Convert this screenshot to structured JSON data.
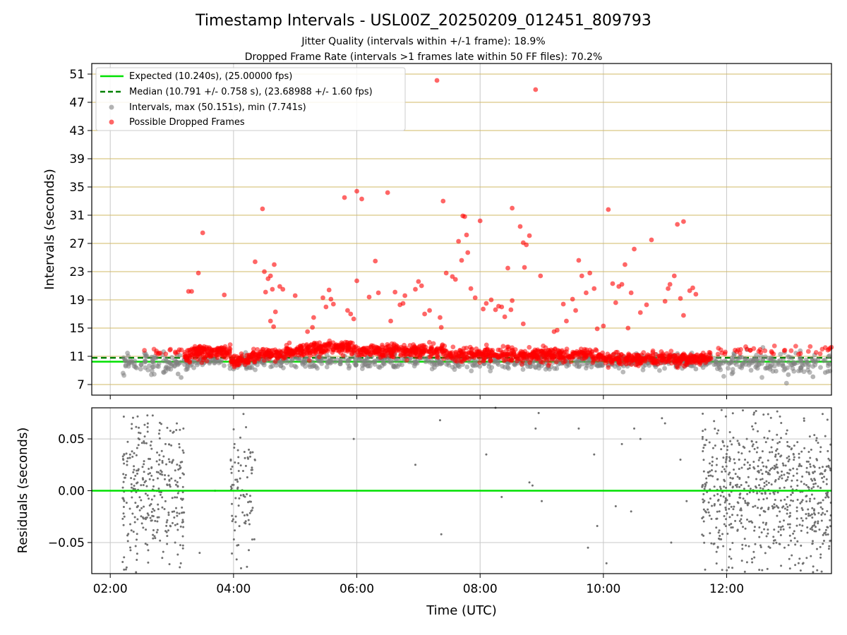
{
  "figure": {
    "title": "Timestamp Intervals - USL00Z_20250209_012451_809793",
    "subtitle_lines": [
      "Jitter Quality (intervals within +/-1 frame): 18.9%",
      "Dropped Frame Rate (intervals >1 frames late within 50 FF files): 70.2%"
    ]
  },
  "colors": {
    "expected": "#00e000",
    "median": "#008000",
    "interval": "#808080",
    "dropped": "#ff0000",
    "hgrid_top": "#d2b866",
    "grid": "#c8c8c8"
  },
  "chart_data": [
    {
      "type": "scatter",
      "panel": "top",
      "xlabel": "",
      "ylabel": "Intervals (seconds)",
      "xlim_hours": [
        1.7,
        13.7
      ],
      "ylim": [
        5.5,
        52.5
      ],
      "yticks": [
        7,
        11,
        15,
        19,
        23,
        27,
        31,
        35,
        39,
        43,
        47,
        51
      ],
      "grid": "horizontal gold lines at yticks, vertical grey lines at xticks",
      "legend_position": "top-left",
      "legend": [
        "Expected (10.240s), (25.00000 fps)",
        "Median (10.791 +/- 0.758 s), (23.68988 +/- 1.60 fps)",
        "Intervals, max (50.151s), min (7.741s)",
        "Possible Dropped Frames"
      ],
      "expected_value": 10.24,
      "median_value": 10.791,
      "interval_max": 50.151,
      "interval_min": 7.741,
      "dropped_points": [
        [
          3.27,
          20.2
        ],
        [
          3.32,
          20.2
        ],
        [
          3.43,
          22.8
        ],
        [
          3.5,
          28.5
        ],
        [
          3.85,
          19.7
        ],
        [
          4.35,
          24.4
        ],
        [
          4.47,
          31.9
        ],
        [
          4.5,
          23.0
        ],
        [
          4.52,
          20.1
        ],
        [
          4.56,
          22.0
        ],
        [
          4.6,
          22.4
        ],
        [
          4.63,
          20.5
        ],
        [
          4.66,
          24.0
        ],
        [
          4.68,
          17.3
        ],
        [
          4.75,
          20.9
        ],
        [
          4.8,
          20.5
        ],
        [
          4.6,
          16.0
        ],
        [
          4.65,
          15.2
        ],
        [
          5.0,
          19.6
        ],
        [
          5.2,
          14.5
        ],
        [
          5.28,
          15.1
        ],
        [
          5.3,
          16.5
        ],
        [
          5.45,
          19.3
        ],
        [
          5.5,
          18.0
        ],
        [
          5.55,
          20.4
        ],
        [
          5.58,
          19.1
        ],
        [
          5.62,
          18.4
        ],
        [
          5.8,
          33.5
        ],
        [
          5.85,
          17.5
        ],
        [
          5.9,
          17.0
        ],
        [
          5.95,
          16.3
        ],
        [
          6.0,
          34.4
        ],
        [
          6.08,
          33.3
        ],
        [
          6.0,
          21.7
        ],
        [
          6.2,
          19.4
        ],
        [
          6.3,
          24.5
        ],
        [
          6.35,
          20.0
        ],
        [
          6.5,
          34.2
        ],
        [
          6.55,
          16.0
        ],
        [
          6.62,
          20.1
        ],
        [
          6.7,
          18.3
        ],
        [
          6.75,
          18.5
        ],
        [
          6.78,
          19.6
        ],
        [
          6.95,
          20.5
        ],
        [
          7.0,
          21.6
        ],
        [
          7.05,
          21.0
        ],
        [
          7.1,
          17.0
        ],
        [
          7.18,
          17.5
        ],
        [
          7.3,
          50.1
        ],
        [
          7.35,
          16.5
        ],
        [
          7.37,
          15.1
        ],
        [
          7.4,
          33.0
        ],
        [
          7.45,
          22.8
        ],
        [
          7.55,
          22.3
        ],
        [
          7.6,
          21.9
        ],
        [
          7.65,
          27.3
        ],
        [
          7.7,
          24.6
        ],
        [
          7.72,
          30.9
        ],
        [
          7.75,
          30.8
        ],
        [
          7.78,
          28.2
        ],
        [
          7.8,
          25.7
        ],
        [
          7.85,
          20.6
        ],
        [
          7.92,
          19.3
        ],
        [
          8.0,
          30.2
        ],
        [
          8.05,
          17.7
        ],
        [
          8.1,
          18.5
        ],
        [
          8.18,
          19.0
        ],
        [
          8.25,
          17.6
        ],
        [
          8.3,
          18.1
        ],
        [
          8.35,
          18.0
        ],
        [
          8.4,
          16.6
        ],
        [
          8.45,
          23.5
        ],
        [
          8.5,
          17.6
        ],
        [
          8.52,
          18.9
        ],
        [
          8.52,
          32.0
        ],
        [
          8.65,
          29.4
        ],
        [
          8.7,
          27.1
        ],
        [
          8.72,
          23.6
        ],
        [
          8.75,
          26.8
        ],
        [
          8.8,
          28.1
        ],
        [
          8.9,
          48.8
        ],
        [
          8.98,
          22.4
        ],
        [
          8.7,
          15.6
        ],
        [
          9.2,
          14.5
        ],
        [
          9.25,
          14.7
        ],
        [
          9.35,
          18.4
        ],
        [
          9.4,
          16.0
        ],
        [
          9.5,
          19.1
        ],
        [
          9.55,
          17.5
        ],
        [
          9.6,
          24.6
        ],
        [
          9.65,
          22.4
        ],
        [
          9.72,
          20.0
        ],
        [
          9.78,
          22.8
        ],
        [
          9.85,
          20.6
        ],
        [
          9.9,
          14.9
        ],
        [
          10.0,
          15.3
        ],
        [
          10.08,
          31.8
        ],
        [
          10.15,
          21.3
        ],
        [
          10.2,
          18.6
        ],
        [
          10.25,
          20.9
        ],
        [
          10.3,
          21.2
        ],
        [
          10.35,
          24.0
        ],
        [
          10.4,
          15.0
        ],
        [
          10.45,
          20.0
        ],
        [
          10.5,
          26.2
        ],
        [
          10.6,
          17.2
        ],
        [
          10.7,
          18.3
        ],
        [
          10.78,
          27.5
        ],
        [
          11.0,
          18.8
        ],
        [
          11.05,
          20.6
        ],
        [
          11.08,
          21.2
        ],
        [
          11.15,
          22.4
        ],
        [
          11.2,
          29.7
        ],
        [
          11.25,
          19.2
        ],
        [
          11.3,
          30.1
        ],
        [
          11.4,
          20.3
        ],
        [
          11.45,
          20.7
        ],
        [
          11.5,
          19.8
        ],
        [
          11.3,
          16.8
        ]
      ],
      "interval_points": [
        [
          2.3,
          10.3
        ],
        [
          2.5,
          9.8
        ],
        [
          2.7,
          9.5
        ],
        [
          2.9,
          9.3
        ],
        [
          3.1,
          8.5
        ],
        [
          3.15,
          8.0
        ],
        [
          3.3,
          9.7
        ],
        [
          4.0,
          9.2
        ],
        [
          4.3,
          9.4
        ],
        [
          7.3,
          9.8
        ],
        [
          8.9,
          9.4
        ],
        [
          11.2,
          9.6
        ],
        [
          11.5,
          9.2
        ],
        [
          12.1,
          8.7
        ],
        [
          12.5,
          9.3
        ],
        [
          12.8,
          8.9
        ],
        [
          13.0,
          8.4
        ],
        [
          13.2,
          9.0
        ],
        [
          13.4,
          8.1
        ],
        [
          13.6,
          8.7
        ]
      ]
    },
    {
      "type": "scatter",
      "panel": "bottom",
      "xlabel": "Time (UTC)",
      "ylabel": "Residuals (seconds)",
      "xlim_hours": [
        1.7,
        13.7
      ],
      "ylim": [
        -0.08,
        0.08
      ],
      "yticks": [
        -0.05,
        0.0,
        0.05
      ],
      "ytick_labels": [
        "−0.05",
        "0.00",
        "0.05"
      ],
      "xticks_hours": [
        2,
        4,
        6,
        8,
        10,
        12
      ],
      "xtick_labels": [
        "02:00",
        "04:00",
        "06:00",
        "08:00",
        "10:00",
        "12:00"
      ],
      "zero_line": 0.0,
      "clusters": [
        {
          "x_range": [
            2.2,
            3.2
          ],
          "count": 320
        },
        {
          "x_range": [
            3.95,
            4.35
          ],
          "count": 90
        },
        {
          "x_range": [
            11.6,
            13.7
          ],
          "count": 700
        }
      ],
      "sparse_points": [
        [
          3.45,
          -0.06
        ],
        [
          3.7,
          0.0
        ],
        [
          5.95,
          0.05
        ],
        [
          6.95,
          0.025
        ],
        [
          7.35,
          0.068
        ],
        [
          7.37,
          -0.042
        ],
        [
          8.1,
          0.035
        ],
        [
          8.25,
          0.08
        ],
        [
          8.35,
          -0.006
        ],
        [
          8.8,
          0.008
        ],
        [
          8.85,
          0.005
        ],
        [
          8.9,
          0.06
        ],
        [
          8.95,
          0.075
        ],
        [
          9.0,
          -0.01
        ],
        [
          9.6,
          0.06
        ],
        [
          9.75,
          -0.055
        ],
        [
          9.85,
          0.035
        ],
        [
          9.9,
          -0.034
        ],
        [
          10.05,
          -0.07
        ],
        [
          10.2,
          -0.015
        ],
        [
          10.3,
          0.045
        ],
        [
          10.45,
          -0.02
        ],
        [
          10.5,
          0.06
        ],
        [
          10.6,
          0.05
        ],
        [
          10.95,
          0.07
        ],
        [
          11.0,
          0.065
        ],
        [
          11.1,
          -0.05
        ],
        [
          11.25,
          0.03
        ],
        [
          11.35,
          -0.01
        ]
      ]
    }
  ]
}
